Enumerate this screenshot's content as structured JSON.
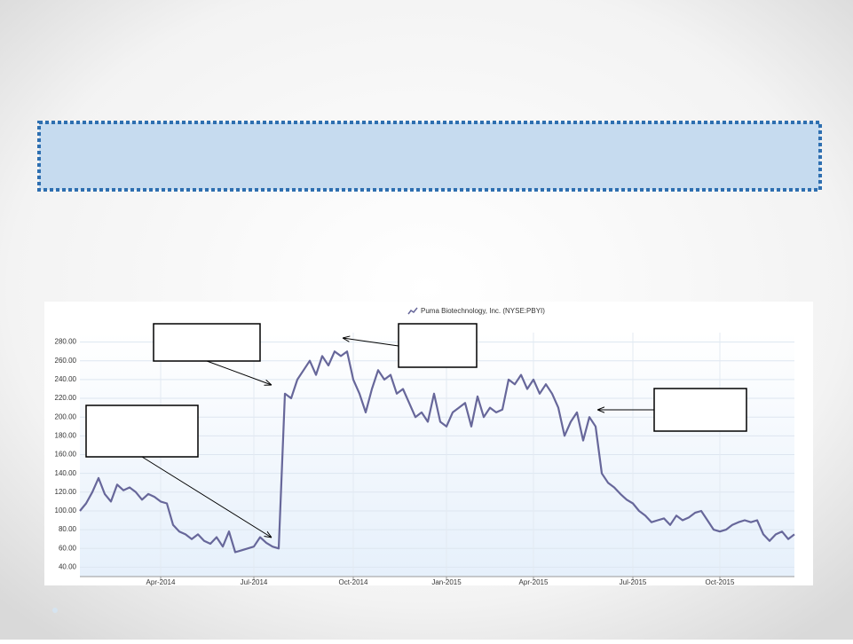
{
  "chart_data": {
    "type": "line",
    "categories": [
      null,
      null,
      null,
      null,
      null,
      null,
      null,
      null,
      null,
      null,
      null,
      null,
      null,
      "Apr-2014",
      null,
      null,
      null,
      null,
      null,
      null,
      null,
      null,
      null,
      null,
      null,
      null,
      null,
      null,
      "Jul-2014",
      null,
      null,
      null,
      null,
      null,
      null,
      null,
      null,
      null,
      null,
      null,
      null,
      null,
      null,
      null,
      "Oct-2014",
      null,
      null,
      null,
      null,
      null,
      null,
      null,
      null,
      null,
      null,
      null,
      null,
      null,
      null,
      "Jan-2015",
      null,
      null,
      null,
      null,
      null,
      null,
      null,
      null,
      null,
      null,
      null,
      null,
      null,
      "Apr-2015",
      null,
      null,
      null,
      null,
      null,
      null,
      null,
      null,
      null,
      null,
      null,
      null,
      null,
      null,
      null,
      "Jul-2015",
      null,
      null,
      null,
      null,
      null,
      null,
      null,
      null,
      null,
      null,
      null,
      null,
      null,
      "Oct-2015",
      null,
      null,
      null,
      null,
      null,
      null,
      null,
      null,
      null,
      null,
      null,
      null
    ],
    "series": [
      {
        "name": "Puma Biotechnology, Inc. (NYSE:PBYI)",
        "color": "#67679a",
        "values": [
          100,
          108,
          120,
          135,
          118,
          110,
          128,
          122,
          125,
          120,
          112,
          118,
          115,
          110,
          108,
          85,
          78,
          75,
          70,
          75,
          68,
          65,
          72,
          62,
          78,
          56,
          58,
          60,
          62,
          72,
          66,
          62,
          60,
          225,
          220,
          240,
          250,
          260,
          245,
          265,
          255,
          270,
          265,
          270,
          240,
          225,
          205,
          230,
          250,
          240,
          245,
          225,
          230,
          215,
          200,
          205,
          195,
          225,
          195,
          190,
          205,
          210,
          215,
          190,
          222,
          200,
          210,
          205,
          208,
          240,
          235,
          245,
          230,
          240,
          225,
          235,
          225,
          210,
          180,
          195,
          205,
          175,
          200,
          190,
          140,
          130,
          125,
          118,
          112,
          108,
          100,
          95,
          88,
          90,
          92,
          85,
          95,
          90,
          93,
          98,
          100,
          90,
          80,
          78,
          80,
          85,
          88,
          90,
          88,
          90,
          75,
          68,
          75,
          78,
          70,
          75
        ]
      }
    ],
    "ylim": [
      30,
      290
    ],
    "yticks": [
      {
        "value": 40,
        "label": "40.00"
      },
      {
        "value": 60,
        "label": "60.00"
      },
      {
        "value": 80,
        "label": "80.00"
      },
      {
        "value": 100,
        "label": "100.00"
      },
      {
        "value": 120,
        "label": "120.00"
      },
      {
        "value": 140,
        "label": "140.00"
      },
      {
        "value": 160,
        "label": "160.00"
      },
      {
        "value": 180,
        "label": "180.00"
      },
      {
        "value": 200,
        "label": "200.00"
      },
      {
        "value": 220,
        "label": "220.00"
      },
      {
        "value": 240,
        "label": "240.00"
      },
      {
        "value": 260,
        "label": "260.00"
      },
      {
        "value": 280,
        "label": "280.00"
      }
    ],
    "grid": true
  }
}
